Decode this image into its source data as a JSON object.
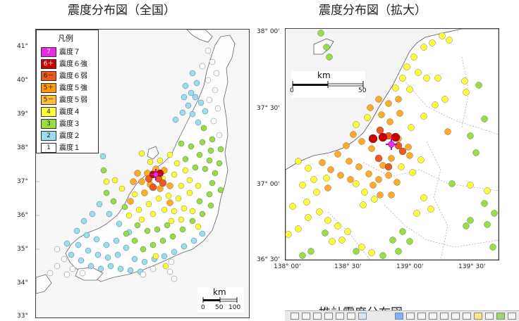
{
  "titles": {
    "left": "震度分布図（全国）",
    "right": "震度分布図（拡大）",
    "bottom_partial": "推計震度分布図"
  },
  "left_map": {
    "lat_labels": [
      "41°",
      "40°",
      "39°",
      "38°",
      "37°",
      "36°",
      "35°",
      "34°",
      "33°"
    ],
    "legend": {
      "title": "凡例",
      "items": [
        {
          "code": "7",
          "label": "震度７",
          "color": "#e52be5"
        },
        {
          "code": "6＋",
          "label": "震度６強",
          "color": "#c80000"
        },
        {
          "code": "6－",
          "label": "震度６弱",
          "color": "#ee5a1e"
        },
        {
          "code": "5＋",
          "label": "震度５強",
          "color": "#ff9900"
        },
        {
          "code": "5－",
          "label": "震度５弱",
          "color": "#ffbb33"
        },
        {
          "code": "4",
          "label": "震度４",
          "color": "#ffff33"
        },
        {
          "code": "3",
          "label": "震度３",
          "color": "#99dd44"
        },
        {
          "code": "2",
          "label": "震度２",
          "color": "#99ddee"
        },
        {
          "code": "1",
          "label": "震度１",
          "color": "#ffffff"
        }
      ]
    },
    "scale": {
      "unit": "km",
      "ticks": [
        "0",
        "50",
        "100"
      ]
    }
  },
  "right_map": {
    "lat_labels": [
      "38° 00'",
      "37° 30'",
      "37° 00'",
      "36° 30'"
    ],
    "lon_labels": [
      "138° 00'",
      "138° 30'",
      "139° 00'",
      "139° 30'"
    ],
    "scale": {
      "unit": "km",
      "ticks": [
        "0",
        "50"
      ]
    }
  }
}
